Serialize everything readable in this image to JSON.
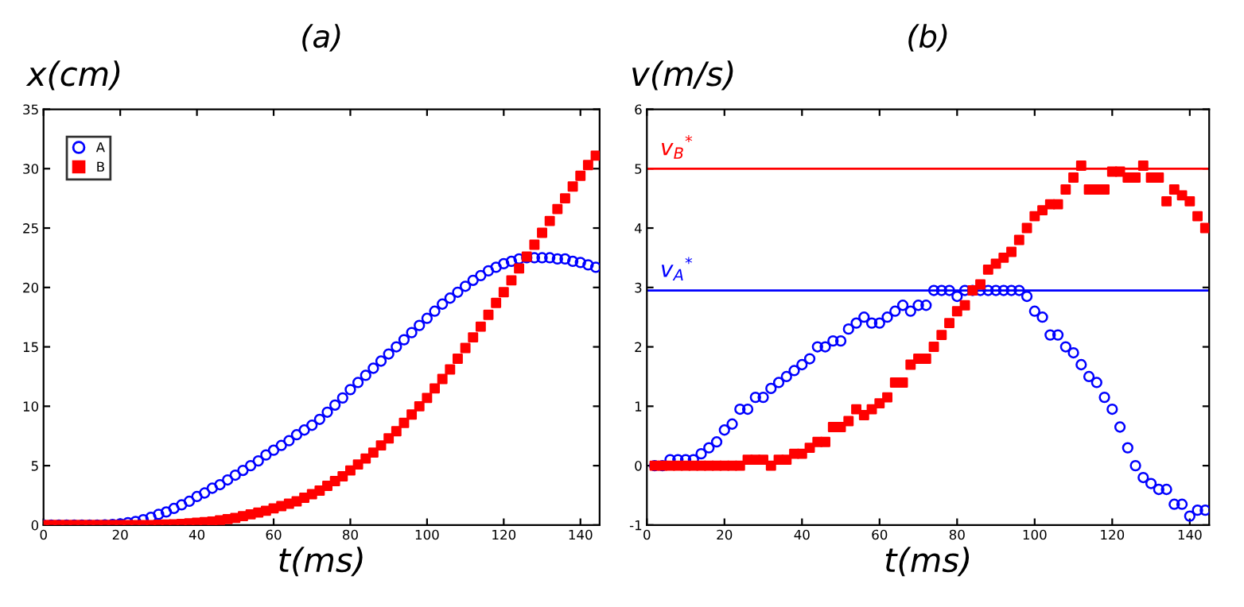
{
  "chart_data": [
    {
      "type": "scatter",
      "title": "(a)",
      "xlabel": "t(ms)",
      "ylabel": "x(cm)",
      "xlim": [
        0,
        145
      ],
      "xticks": [
        0,
        20,
        40,
        60,
        80,
        100,
        120,
        140
      ],
      "ylim": [
        0,
        35
      ],
      "yticks": [
        0,
        5,
        10,
        15,
        20,
        25,
        30,
        35
      ],
      "legend": "top left",
      "x": [
        0,
        2,
        4,
        6,
        8,
        10,
        12,
        14,
        16,
        18,
        20,
        22,
        24,
        26,
        28,
        30,
        32,
        34,
        36,
        38,
        40,
        42,
        44,
        46,
        48,
        50,
        52,
        54,
        56,
        58,
        60,
        62,
        64,
        66,
        68,
        70,
        72,
        74,
        76,
        78,
        80,
        82,
        84,
        86,
        88,
        90,
        92,
        94,
        96,
        98,
        100,
        102,
        104,
        106,
        108,
        110,
        112,
        114,
        116,
        118,
        120,
        122,
        124,
        126,
        128,
        130,
        132,
        134,
        136,
        138,
        140,
        142,
        144
      ],
      "series": [
        {
          "name": "A",
          "color": "#0000ff",
          "marker": "circle",
          "values": [
            0,
            0,
            0,
            0,
            0,
            0,
            0,
            0,
            0.02,
            0.05,
            0.1,
            0.2,
            0.3,
            0.45,
            0.65,
            0.9,
            1.1,
            1.4,
            1.7,
            2.0,
            2.4,
            2.7,
            3.1,
            3.4,
            3.8,
            4.2,
            4.6,
            5.0,
            5.4,
            5.9,
            6.3,
            6.7,
            7.1,
            7.6,
            8.0,
            8.4,
            8.9,
            9.5,
            10.1,
            10.7,
            11.4,
            12.0,
            12.6,
            13.2,
            13.8,
            14.4,
            15.0,
            15.6,
            16.2,
            16.8,
            17.4,
            18.0,
            18.6,
            19.1,
            19.6,
            20.1,
            20.6,
            21.0,
            21.4,
            21.7,
            22.0,
            22.2,
            22.4,
            22.5,
            22.5,
            22.5,
            22.5,
            22.4,
            22.4,
            22.2,
            22.1,
            21.9,
            21.7
          ]
        },
        {
          "name": "B",
          "color": "#ff0000",
          "marker": "square",
          "values": [
            0,
            0,
            0,
            0,
            0,
            0,
            0,
            0,
            0,
            0,
            0,
            0,
            0,
            0,
            0,
            0.02,
            0.04,
            0.06,
            0.1,
            0.14,
            0.2,
            0.25,
            0.3,
            0.4,
            0.5,
            0.6,
            0.75,
            0.9,
            1.05,
            1.2,
            1.4,
            1.6,
            1.8,
            2.0,
            2.3,
            2.6,
            2.9,
            3.3,
            3.7,
            4.1,
            4.6,
            5.1,
            5.6,
            6.1,
            6.7,
            7.3,
            7.9,
            8.6,
            9.3,
            10.0,
            10.7,
            11.5,
            12.3,
            13.1,
            14.0,
            14.9,
            15.8,
            16.7,
            17.7,
            18.7,
            19.6,
            20.6,
            21.6,
            22.6,
            23.6,
            24.6,
            25.6,
            26.6,
            27.5,
            28.5,
            29.4,
            30.3,
            31.1
          ]
        }
      ]
    },
    {
      "type": "scatter",
      "title": "(b)",
      "xlabel": "t(ms)",
      "ylabel": "v(m/s)",
      "xlim": [
        0,
        145
      ],
      "xticks": [
        0,
        20,
        40,
        60,
        80,
        100,
        120,
        140
      ],
      "ylim": [
        -1,
        6
      ],
      "yticks": [
        -1,
        0,
        1,
        2,
        3,
        4,
        5,
        6
      ],
      "x": [
        2,
        4,
        6,
        8,
        10,
        12,
        14,
        16,
        18,
        20,
        22,
        24,
        26,
        28,
        30,
        32,
        34,
        36,
        38,
        40,
        42,
        44,
        46,
        48,
        50,
        52,
        54,
        56,
        58,
        60,
        62,
        64,
        66,
        68,
        70,
        72,
        74,
        76,
        78,
        80,
        82,
        84,
        86,
        88,
        90,
        92,
        94,
        96,
        98,
        100,
        102,
        104,
        106,
        108,
        110,
        112,
        114,
        116,
        118,
        120,
        122,
        124,
        126,
        128,
        130,
        132,
        134,
        136,
        138,
        140,
        142,
        144
      ],
      "ref_lines": [
        {
          "axis": "y",
          "value": 5,
          "label": "v$_{B}$$^{*}$",
          "color": "#ff0000"
        },
        {
          "axis": "y",
          "value": 2.95,
          "label": "v$_{A}$$^{*}$",
          "color": "#0000ff"
        }
      ],
      "series": [
        {
          "color": "#0000ff",
          "marker": "circle",
          "values": [
            0,
            0,
            0.1,
            0.1,
            0.1,
            0.1,
            0.2,
            0.3,
            0.4,
            0.6,
            0.7,
            0.95,
            0.95,
            1.15,
            1.15,
            1.3,
            1.4,
            1.5,
            1.6,
            1.7,
            1.8,
            2.0,
            2.0,
            2.1,
            2.1,
            2.3,
            2.4,
            2.5,
            2.4,
            2.4,
            2.5,
            2.6,
            2.7,
            2.6,
            2.7,
            2.7,
            2.95,
            2.95,
            2.95,
            2.85,
            2.95,
            2.95,
            2.95,
            2.95,
            2.95,
            2.95,
            2.95,
            2.95,
            2.85,
            2.6,
            2.5,
            2.2,
            2.2,
            2.0,
            1.9,
            1.7,
            1.5,
            1.4,
            1.15,
            0.95,
            0.65,
            0.3,
            0,
            -0.2,
            -0.3,
            -0.4,
            -0.4,
            -0.65,
            -0.65,
            -0.85,
            -0.75,
            -0.75
          ]
        },
        {
          "color": "#ff0000",
          "marker": "square",
          "values": [
            0,
            0,
            0,
            0,
            0,
            0,
            0,
            0,
            0,
            0,
            0,
            0,
            0.1,
            0.1,
            0.1,
            0,
            0.1,
            0.1,
            0.2,
            0.2,
            0.3,
            0.4,
            0.4,
            0.65,
            0.65,
            0.75,
            0.95,
            0.85,
            0.95,
            1.05,
            1.15,
            1.4,
            1.4,
            1.7,
            1.8,
            1.8,
            2.0,
            2.2,
            2.4,
            2.6,
            2.7,
            2.95,
            3.05,
            3.3,
            3.4,
            3.5,
            3.6,
            3.8,
            4.0,
            4.2,
            4.3,
            4.4,
            4.4,
            4.65,
            4.85,
            5.05,
            4.65,
            4.65,
            4.65,
            4.95,
            4.95,
            4.85,
            4.85,
            5.05,
            4.85,
            4.85,
            4.45,
            4.65,
            4.55,
            4.45,
            4.2,
            4.0
          ]
        }
      ]
    }
  ]
}
